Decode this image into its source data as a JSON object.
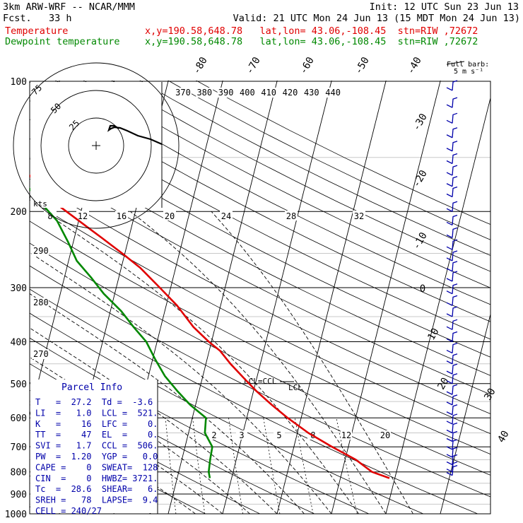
{
  "header": {
    "title": "3km ARW-WRF -- NCAR/MMM",
    "init": "Init: 12 UTC Sun 23 Jun 13",
    "fcst": "Fcst.   33 h",
    "valid": "Valid: 21 UTC Mon 24 Jun 13 (15 MDT Mon 24 Jun 13)",
    "temp_label": "Temperature",
    "dew_label": "Dewpoint temperature",
    "location": "x,y=190.58,648.78   lat,lon= 43.06,-108.45  stn=RIW ,72672"
  },
  "colors": {
    "temperature": "#e00000",
    "dewpoint": "#008800",
    "axes": "#000000",
    "grid": "#c8c8c8"
  },
  "chart_data": {
    "type": "line",
    "name": "Skew-T log-p diagram",
    "y_axis": {
      "scale": "log",
      "pressure_ticks_hPa": [
        100,
        200,
        300,
        400,
        500,
        600,
        700,
        800,
        900,
        1000
      ]
    },
    "isotherm_labels_C": [
      -80,
      -70,
      -60,
      -50,
      -40,
      -30,
      -20,
      -10,
      0,
      10,
      20,
      30,
      40
    ],
    "theta_labels_K": [
      370,
      380,
      390,
      400,
      410,
      420,
      430,
      440
    ],
    "adiabat_labels_K": [
      290,
      280,
      270
    ],
    "mixing_ratio_labels": [
      2,
      3,
      5,
      8,
      12,
      20
    ],
    "series": [
      {
        "name": "Temperature",
        "color": "#e00000",
        "points": [
          [
            827,
            29.0
          ],
          [
            800,
            25.5
          ],
          [
            750,
            22.0
          ],
          [
            700,
            17.0
          ],
          [
            650,
            12.0
          ],
          [
            600,
            7.5
          ],
          [
            560,
            4.0
          ],
          [
            520,
            0.5
          ],
          [
            490,
            -2.0
          ],
          [
            450,
            -5.5
          ],
          [
            420,
            -8.0
          ],
          [
            400,
            -10.5
          ],
          [
            370,
            -14.0
          ],
          [
            330,
            -18.0
          ],
          [
            300,
            -22.0
          ],
          [
            270,
            -26.5
          ],
          [
            250,
            -30.5
          ],
          [
            230,
            -35.0
          ],
          [
            210,
            -40.0
          ],
          [
            190,
            -45.5
          ],
          [
            170,
            -50.0
          ],
          [
            155,
            -53.5
          ],
          [
            145,
            -55.0
          ],
          [
            135,
            -55.5
          ],
          [
            125,
            -56.5
          ],
          [
            115,
            -58.0
          ],
          [
            108,
            -59.0
          ],
          [
            100,
            -59.5
          ]
        ]
      },
      {
        "name": "Dewpoint temperature",
        "color": "#008800",
        "points": [
          [
            827,
            -4.0
          ],
          [
            800,
            -4.5
          ],
          [
            750,
            -4.8
          ],
          [
            700,
            -5.0
          ],
          [
            650,
            -7.0
          ],
          [
            600,
            -7.5
          ],
          [
            560,
            -11.0
          ],
          [
            520,
            -14.0
          ],
          [
            480,
            -17.0
          ],
          [
            440,
            -19.5
          ],
          [
            400,
            -22.0
          ],
          [
            370,
            -25.0
          ],
          [
            340,
            -28.0
          ],
          [
            310,
            -32.0
          ],
          [
            285,
            -35.0
          ],
          [
            260,
            -38.5
          ],
          [
            235,
            -41.0
          ],
          [
            210,
            -44.0
          ],
          [
            190,
            -48.0
          ],
          [
            170,
            -52.0
          ],
          [
            150,
            -56.0
          ],
          [
            130,
            -62.0
          ],
          [
            115,
            -68.0
          ],
          [
            100,
            -76.0
          ]
        ]
      }
    ],
    "annotations": [
      "LCL",
      "LCL=CCL"
    ],
    "hodograph": {
      "rings_kts": [
        25,
        50,
        75
      ],
      "ring_labels": [
        "25",
        "50",
        "75"
      ],
      "axis_label": "kts"
    },
    "wind_barbs": {
      "legend": "Full barb:",
      "legend_unit": "5 m s⁻¹"
    }
  },
  "parcel_info": {
    "title": "Parcel Info",
    "rows": [
      "T   =  27.2  Td =  -3.6",
      "LI  =   1.0  LCL =  521.",
      "K   =    16  LFC =    0.",
      "TT  =    47  EL  =    0.",
      "SVI =   1.7  CCL =  506.",
      "PW  =  1.20  YGP =   0.0",
      "CAPE =    0  SWEAT=  128",
      "CIN  =    0  HWBZ= 3721.",
      "Tc  =  28.6  SHEAR=   6.",
      "SREH =   78  LAPSE=  9.4",
      "CELL = 240/27"
    ]
  },
  "inset_labels": {
    "temp_ticks": [
      "8",
      "12",
      "16",
      "20",
      "24",
      "28",
      "32"
    ]
  }
}
